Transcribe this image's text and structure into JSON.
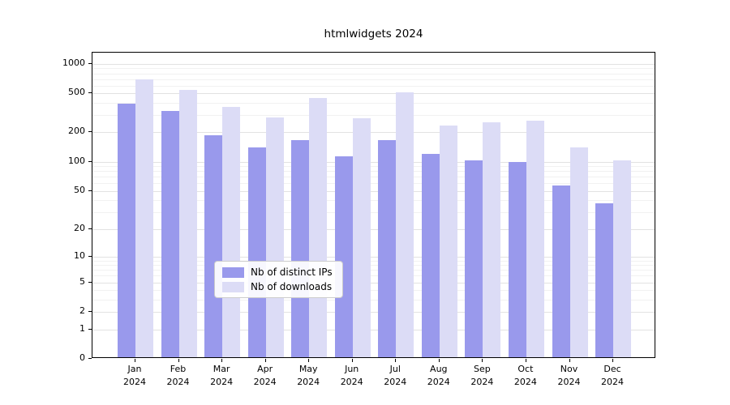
{
  "title": "htmlwidgets 2024",
  "x_axis": {
    "year": "2024",
    "months": [
      "Jan",
      "Feb",
      "Mar",
      "Apr",
      "May",
      "Jun",
      "Jul",
      "Aug",
      "Sep",
      "Oct",
      "Nov",
      "Dec"
    ]
  },
  "y_axis": {
    "tick_labels": [
      "1000",
      "500",
      "200",
      "100",
      "50",
      "20",
      "10",
      "5",
      "2",
      "1",
      "0"
    ]
  },
  "legend": {
    "items": [
      {
        "label": "Nb of distinct IPs",
        "color": "#9999ec"
      },
      {
        "label": "Nb of downloads",
        "color": "#dcdcf6"
      }
    ]
  },
  "chart_data": {
    "type": "bar",
    "title": "htmlwidgets 2024",
    "categories": [
      "Jan 2024",
      "Feb 2024",
      "Mar 2024",
      "Apr 2024",
      "May 2024",
      "Jun 2024",
      "Jul 2024",
      "Aug 2024",
      "Sep 2024",
      "Oct 2024",
      "Nov 2024",
      "Dec 2024"
    ],
    "series": [
      {
        "name": "Nb of distinct IPs",
        "color": "#9999ec",
        "values": [
          380,
          320,
          180,
          135,
          160,
          110,
          160,
          115,
          100,
          95,
          55,
          36
        ]
      },
      {
        "name": "Nb of downloads",
        "color": "#dcdcf6",
        "values": [
          670,
          525,
          350,
          275,
          430,
          270,
          490,
          225,
          245,
          255,
          135,
          100
        ]
      }
    ],
    "yscale": "log1p",
    "ylim": [
      0,
      1300
    ],
    "yticks": [
      0,
      1,
      2,
      5,
      10,
      20,
      50,
      100,
      200,
      500,
      1000
    ],
    "grid": true,
    "legend_position": "lower center"
  }
}
